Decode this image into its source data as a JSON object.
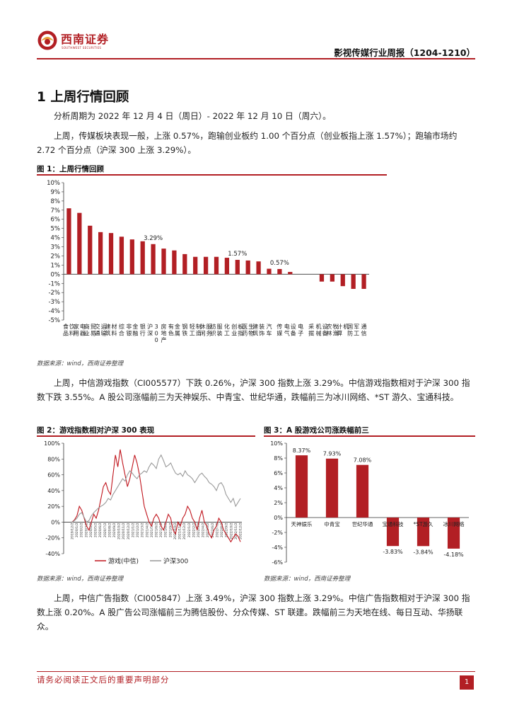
{
  "header": {
    "logo_cn": "西南证券",
    "logo_en": "SOUTHWEST SECURITIES",
    "title": "影视传媒行业周报（1204-1210）"
  },
  "section": {
    "title": "1 上周行情回顾",
    "para1": "分析周期为 2022 年 12 月 4 日（周日）- 2022 年 12 月 10 日（周六）。",
    "para2": "上周，传媒板块表现一般，上涨 0.57%，跑输创业板约 1.00 个百分点（创业板指上涨 1.57%）；跑输市场约 2.72 个百分点（沪深 300 上涨 3.29%）。"
  },
  "figure1": {
    "title": "图 1：上周行情回顾",
    "source": "数据来源：wind，西南证券整理"
  },
  "para3": "上周，中信游戏指数（CI005577）下跌 0.26%，沪深 300 指数上涨 3.29%。中信游戏指数相对于沪深 300 指数下跌 3.55%。A 股公司涨幅前三为天神娱乐、中青宝、世纪华通，跌幅前三为冰川网络、*ST 游久、宝通科技。",
  "figure2": {
    "title": "图 2：游戏指数相对沪深 300 表现",
    "source": "数据来源：wind，西南证券整理"
  },
  "figure3": {
    "title": "图 3：A 股游戏公司涨跌幅前三",
    "source": "数据来源：wind，西南证券整理"
  },
  "para4": "上周，中信广告指数（CI005847）上涨 3.49%，沪深 300 指数上涨 3.29%。中信广告指数相对于沪深 300 指数上涨 0.20%。A 股广告公司涨幅前三为腾信股份、分众传媒、ST 联建。跌幅前三为天地在线、每日互动、华扬联众。",
  "footer": {
    "text": "请务必阅读正文后的重要声明部分",
    "page": "1"
  },
  "chart_data": [
    {
      "type": "bar",
      "title": "",
      "categories": [
        "食品饮料",
        "家用电器",
        "商业贸易",
        "交通运输",
        "建筑材料",
        "综合",
        "非银金融",
        "银行",
        "沪深300",
        "房地产",
        "有色金属",
        "钢铁",
        "轻工制造",
        "休闲服务",
        "纺织服装",
        "化工",
        "创业板指",
        "医药生物",
        "建筑装饰",
        "汽车",
        "传媒",
        "电气设备",
        "电子",
        "采掘",
        "机械设备",
        "农林牧渔",
        "计算机",
        "国防军工",
        "通信"
      ],
      "category_display": [
        "食品\n饮料",
        "家用\n电器",
        "商业\n贸易",
        "交通\n运输",
        "建筑\n材料",
        "综合",
        "非银\n金融",
        "银行",
        "沪深\n300",
        "房地产",
        "有色\n金属",
        "钢铁",
        "轻工\n制造",
        "休闲\n服务",
        "纺织\n服装",
        "化工",
        "创业\n板指",
        "医药\n生物",
        "建筑\n装饰",
        "汽车",
        "传媒",
        "电气\n设备",
        "电子",
        "采掘",
        "机械\n设备",
        "农林\n牧渔",
        "计算\n机",
        "国防\n军工",
        "通信"
      ],
      "values": [
        7.2,
        6.7,
        5.3,
        4.6,
        4.5,
        4.1,
        3.8,
        3.6,
        3.29,
        2.8,
        2.6,
        2.2,
        1.9,
        1.9,
        1.9,
        1.8,
        1.57,
        1.5,
        1.4,
        0.6,
        0.57,
        0.25,
        0.0,
        0.0,
        -0.8,
        -0.8,
        -1.3,
        -1.6,
        -1.6
      ],
      "data_labels": {
        "8": "3.29%",
        "16": "1.57%",
        "20": "0.57%"
      },
      "ylim": [
        -5,
        10
      ],
      "yticks": [
        "-5%",
        "-4%",
        "-3%",
        "-2%",
        "-1%",
        "0%",
        "1%",
        "2%",
        "3%",
        "4%",
        "5%",
        "6%",
        "7%",
        "8%",
        "9%",
        "10%"
      ],
      "color": "#b21f24"
    },
    {
      "type": "line",
      "title": "",
      "ylim": [
        -40,
        100
      ],
      "yticks": [
        "-40%",
        "-20%",
        "0%",
        "20%",
        "40%",
        "60%",
        "80%",
        "100%"
      ],
      "x_ticks": [
        "2019/12/2",
        "2020/1/2",
        "2020/2/2",
        "2020/3/2",
        "2020/4/2",
        "2020/5/2",
        "2020/6/2",
        "2020/7/2",
        "2020/8/2",
        "2020/9/2",
        "2020/10/2",
        "2020/11/2",
        "2020/12/2",
        "2021/1/2",
        "2021/2/2",
        "2021/3/2",
        "2021/4/2",
        "2021/5/2",
        "2021/6/2",
        "2021/7/2",
        "2021/8/2",
        "2021/9/2",
        "2021/10/2",
        "2021/11/2",
        "2021/12/2",
        "2022/1/2",
        "2022/2/2",
        "2022/3/2",
        "2022/4/2",
        "2022/5/2",
        "2022/6/2",
        "2022/7/2",
        "2022/8/2",
        "2022/9/2",
        "2022/10/2",
        "2022/11/2",
        "2022/12/2"
      ],
      "series": [
        {
          "name": "游戏(中信)",
          "color": "#c0141c",
          "values": [
            0,
            3,
            8,
            20,
            15,
            5,
            -5,
            -10,
            0,
            10,
            5,
            15,
            30,
            45,
            50,
            40,
            35,
            60,
            85,
            70,
            92,
            75,
            60,
            45,
            55,
            70,
            85,
            75,
            60,
            40,
            20,
            10,
            0,
            -5,
            5,
            10,
            5,
            -5,
            -10,
            0,
            10,
            5,
            -10,
            -15,
            0,
            -5,
            5,
            10,
            20,
            15,
            5,
            0,
            -10,
            5,
            15,
            0,
            -5,
            -15,
            -20,
            -10,
            -5,
            5,
            0,
            -10,
            -15,
            -20,
            -25,
            -20,
            -15,
            -18,
            -25
          ]
        },
        {
          "name": "沪深300",
          "color": "#999999",
          "values": [
            0,
            2,
            5,
            10,
            12,
            6,
            0,
            2,
            8,
            12,
            15,
            18,
            20,
            22,
            25,
            30,
            28,
            35,
            40,
            45,
            50,
            55,
            52,
            60,
            65,
            62,
            58,
            55,
            60,
            62,
            65,
            63,
            70,
            75,
            72,
            68,
            80,
            85,
            78,
            70,
            72,
            75,
            68,
            62,
            60,
            62,
            58,
            65,
            60,
            58,
            55,
            50,
            55,
            60,
            62,
            58,
            55,
            50,
            48,
            45,
            40,
            48,
            50,
            45,
            35,
            30,
            25,
            30,
            20,
            25,
            30
          ]
        }
      ]
    },
    {
      "type": "bar",
      "title": "",
      "categories": [
        "天神娱乐",
        "中青宝",
        "世纪华通",
        "宝通科技",
        "*ST游久",
        "冰川网络"
      ],
      "values": [
        8.37,
        7.93,
        7.08,
        -3.83,
        -3.84,
        -4.18
      ],
      "data_labels": [
        "8.37%",
        "7.93%",
        "7.08%",
        "-3.83%",
        "-3.84%",
        "-4.18%"
      ],
      "ylim": [
        -6,
        10
      ],
      "yticks": [
        "-6%",
        "-4%",
        "-2%",
        "0%",
        "2%",
        "4%",
        "6%",
        "8%",
        "10%"
      ],
      "color": "#b21f24"
    }
  ]
}
